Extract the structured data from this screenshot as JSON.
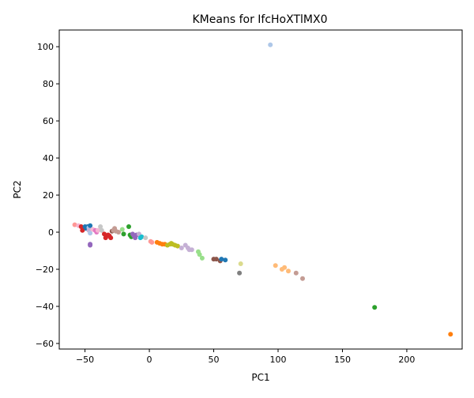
{
  "chart_data": {
    "type": "scatter",
    "title": "KMeans for IfcHoXTlMX0",
    "xlabel": "PC1",
    "ylabel": "PC2",
    "xlim": [
      -70,
      243
    ],
    "ylim": [
      -63,
      109
    ],
    "xticks": [
      -50,
      0,
      50,
      100,
      150,
      200
    ],
    "yticks": [
      -60,
      -40,
      -20,
      0,
      20,
      40,
      60,
      80,
      100
    ],
    "grid": false,
    "legend": "none",
    "points": [
      {
        "x": -58,
        "y": 4,
        "color": "#ff9896"
      },
      {
        "x": -55,
        "y": 3.5,
        "color": "#f7b6d2"
      },
      {
        "x": -53,
        "y": 3,
        "color": "#d62728"
      },
      {
        "x": -52,
        "y": 1,
        "color": "#d62728"
      },
      {
        "x": -51,
        "y": 2,
        "color": "#d62728"
      },
      {
        "x": -50,
        "y": 3,
        "color": "#1f77b4"
      },
      {
        "x": -49,
        "y": 2,
        "color": "#1f77b4"
      },
      {
        "x": -48,
        "y": 3,
        "color": "#1f77b4"
      },
      {
        "x": -47,
        "y": 2.5,
        "color": "#aec7e8"
      },
      {
        "x": -46,
        "y": 3.5,
        "color": "#1f77b4"
      },
      {
        "x": -47,
        "y": 1,
        "color": "#c5b0d5"
      },
      {
        "x": -46,
        "y": -0.5,
        "color": "#aec7e8"
      },
      {
        "x": -46,
        "y": -6.5,
        "color": "#9467bd"
      },
      {
        "x": -46,
        "y": -7,
        "color": "#9467bd"
      },
      {
        "x": -44,
        "y": 1.5,
        "color": "#f7b6d2"
      },
      {
        "x": -42,
        "y": 1,
        "color": "#e377c2"
      },
      {
        "x": -41,
        "y": 0,
        "color": "#e377c2"
      },
      {
        "x": -40,
        "y": 1,
        "color": "#f7b6d2"
      },
      {
        "x": -38,
        "y": 3,
        "color": "#c7c7c7"
      },
      {
        "x": -37,
        "y": 1,
        "color": "#c7c7c7"
      },
      {
        "x": -35,
        "y": -1,
        "color": "#d62728"
      },
      {
        "x": -34,
        "y": -3,
        "color": "#d62728"
      },
      {
        "x": -33,
        "y": -2,
        "color": "#d62728"
      },
      {
        "x": -32,
        "y": -1.5,
        "color": "#d62728"
      },
      {
        "x": -31,
        "y": -2,
        "color": "#d62728"
      },
      {
        "x": -30,
        "y": -3,
        "color": "#d62728"
      },
      {
        "x": -29,
        "y": 0.5,
        "color": "#8c564b"
      },
      {
        "x": -28,
        "y": 1,
        "color": "#c49c94"
      },
      {
        "x": -27,
        "y": 2,
        "color": "#c49c94"
      },
      {
        "x": -26,
        "y": 0.5,
        "color": "#c49c94"
      },
      {
        "x": -24,
        "y": 0,
        "color": "#c49c94"
      },
      {
        "x": -21,
        "y": 1.5,
        "color": "#98df8a"
      },
      {
        "x": -20,
        "y": -1,
        "color": "#2ca02c"
      },
      {
        "x": -16,
        "y": 3,
        "color": "#2ca02c"
      },
      {
        "x": -15,
        "y": -1.5,
        "color": "#2ca02c"
      },
      {
        "x": -14,
        "y": -2.5,
        "color": "#2ca02c"
      },
      {
        "x": -13,
        "y": -1,
        "color": "#9467bd"
      },
      {
        "x": -12,
        "y": -2,
        "color": "#9467bd"
      },
      {
        "x": -11,
        "y": -3,
        "color": "#9467bd"
      },
      {
        "x": -10,
        "y": -1.5,
        "color": "#9467bd"
      },
      {
        "x": -8,
        "y": -1,
        "color": "#c5b0d5"
      },
      {
        "x": -7,
        "y": -3,
        "color": "#17becf"
      },
      {
        "x": -6,
        "y": -2.5,
        "color": "#17becf"
      },
      {
        "x": -3,
        "y": -3,
        "color": "#c7c7c7"
      },
      {
        "x": 1,
        "y": -5,
        "color": "#ff9896"
      },
      {
        "x": 2,
        "y": -5.5,
        "color": "#ff9896"
      },
      {
        "x": 6,
        "y": -5.5,
        "color": "#ff7f0e"
      },
      {
        "x": 8,
        "y": -6,
        "color": "#ff7f0e"
      },
      {
        "x": 10,
        "y": -6.5,
        "color": "#ff7f0e"
      },
      {
        "x": 12,
        "y": -6.5,
        "color": "#ff7f0e"
      },
      {
        "x": 14,
        "y": -7,
        "color": "#bcbd22"
      },
      {
        "x": 16,
        "y": -6.5,
        "color": "#bcbd22"
      },
      {
        "x": 17,
        "y": -6,
        "color": "#bcbd22"
      },
      {
        "x": 18,
        "y": -6.5,
        "color": "#bcbd22"
      },
      {
        "x": 20,
        "y": -7,
        "color": "#bcbd22"
      },
      {
        "x": 22,
        "y": -7.5,
        "color": "#bcbd22"
      },
      {
        "x": 25,
        "y": -8.5,
        "color": "#c5b0d5"
      },
      {
        "x": 28,
        "y": -7,
        "color": "#c5b0d5"
      },
      {
        "x": 30,
        "y": -8.5,
        "color": "#c5b0d5"
      },
      {
        "x": 31,
        "y": -9.5,
        "color": "#c5b0d5"
      },
      {
        "x": 33,
        "y": -9.5,
        "color": "#c5b0d5"
      },
      {
        "x": 38,
        "y": -10.5,
        "color": "#98df8a"
      },
      {
        "x": 39,
        "y": -12,
        "color": "#98df8a"
      },
      {
        "x": 41,
        "y": -14,
        "color": "#98df8a"
      },
      {
        "x": 50,
        "y": -14.5,
        "color": "#8c564b"
      },
      {
        "x": 52,
        "y": -14.5,
        "color": "#8c564b"
      },
      {
        "x": 55,
        "y": -15.5,
        "color": "#8c564b"
      },
      {
        "x": 56,
        "y": -14.5,
        "color": "#1f77b4"
      },
      {
        "x": 59,
        "y": -15,
        "color": "#1f77b4"
      },
      {
        "x": 71,
        "y": -17,
        "color": "#dbdb8d"
      },
      {
        "x": 70,
        "y": -22,
        "color": "#7f7f7f"
      },
      {
        "x": 98,
        "y": -18,
        "color": "#ffbb78"
      },
      {
        "x": 103,
        "y": -20,
        "color": "#ffbb78"
      },
      {
        "x": 105,
        "y": -19,
        "color": "#ffbb78"
      },
      {
        "x": 108,
        "y": -21,
        "color": "#ffbb78"
      },
      {
        "x": 114,
        "y": -22,
        "color": "#c49c94"
      },
      {
        "x": 119,
        "y": -25,
        "color": "#c49c94"
      },
      {
        "x": 94,
        "y": 101,
        "color": "#aec7e8"
      },
      {
        "x": 175,
        "y": -40.5,
        "color": "#2ca02c"
      },
      {
        "x": 234,
        "y": -55,
        "color": "#ff7f0e"
      }
    ]
  }
}
